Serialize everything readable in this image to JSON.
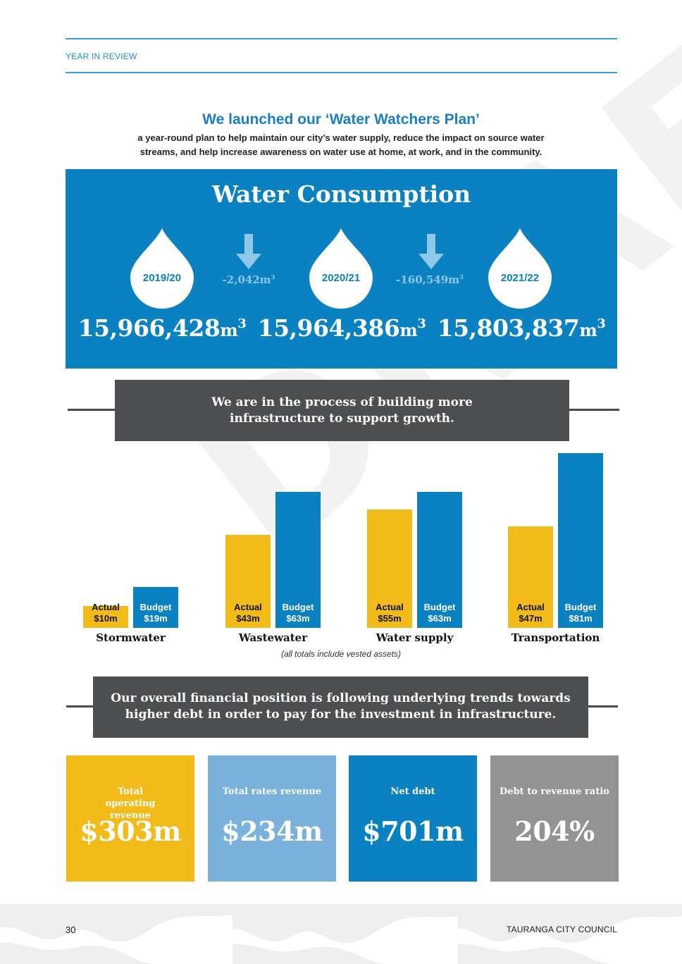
{
  "header": {
    "section": "YEAR IN REVIEW"
  },
  "intro": {
    "title": "We launched our ‘Water Watchers Plan’",
    "subtitle": "a year-round plan to help maintain our city’s water supply, reduce the impact on source water streams, and help increase awareness on water use at home, at work, and in the community."
  },
  "water_consumption": {
    "title": "Water Consumption",
    "years": [
      "2019/20",
      "2020/21",
      "2021/22"
    ],
    "totals": [
      "15,966,428",
      "15,964,386",
      "15,803,837"
    ],
    "total_unit": "m",
    "unit_exponent": "3",
    "changes": [
      "-2,042m",
      "-160,549m"
    ],
    "colors": {
      "panel": "#0a82c2",
      "drop": "#ffffff",
      "arrow": "#8ec7ea"
    }
  },
  "banner1": {
    "line1": "We are in the process of building more",
    "line2": "infrastructure to support growth."
  },
  "chart_data": {
    "type": "bar",
    "categories": [
      "Stormwater",
      "Wastewater",
      "Water supply",
      "Transportation"
    ],
    "series": [
      {
        "name": "Actual",
        "values": [
          10,
          43,
          55,
          47
        ],
        "labels": [
          "$10m",
          "$43m",
          "$55m",
          "$47m"
        ],
        "color": "#f2bb19"
      },
      {
        "name": "Budget",
        "values": [
          19,
          63,
          63,
          81
        ],
        "labels": [
          "$19m",
          "$63m",
          "$63m",
          "$81m"
        ],
        "color": "#0a82c2"
      }
    ],
    "ylim": [
      0,
      81
    ],
    "note": "(all totals include vested assets)"
  },
  "watermark": {
    "text": "DRAFT"
  },
  "banner2": {
    "line1": "Our overall financial position is following underlying trends towards",
    "line2": "higher debt in order to pay for the investment in infrastructure."
  },
  "kpis": [
    {
      "label": "Total operating revenue",
      "value": "$303m",
      "color": "#f2bb19"
    },
    {
      "label": "Total rates revenue",
      "value": "$234m",
      "color": "#7ab2db"
    },
    {
      "label": "Net debt",
      "value": "$701m",
      "color": "#0a82c2"
    },
    {
      "label": "Debt to revenue ratio",
      "value": "204%",
      "color": "#939393"
    }
  ],
  "footer": {
    "page_number": "30",
    "organisation": "TAURANGA CITY COUNCIL"
  }
}
